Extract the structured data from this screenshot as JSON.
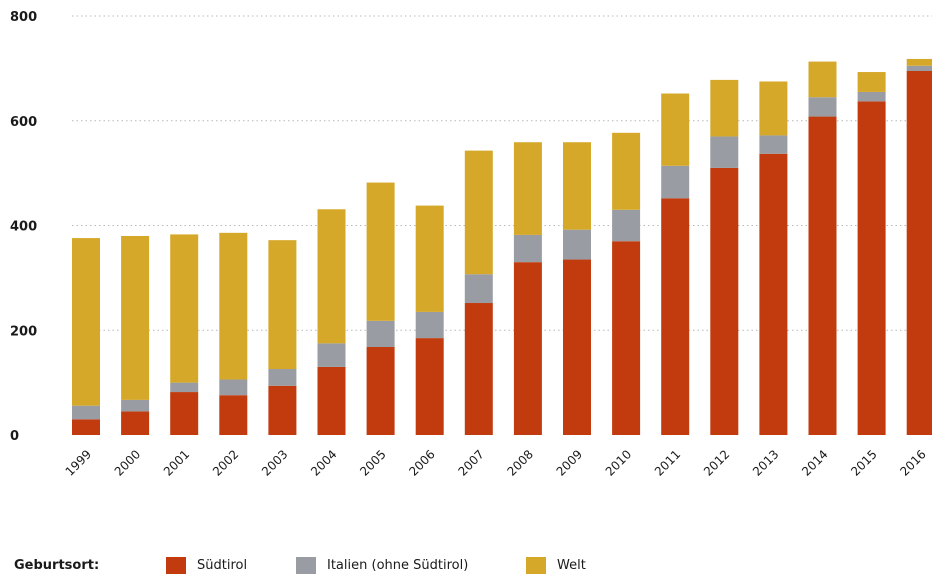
{
  "chart_data": {
    "type": "bar",
    "stacked": true,
    "categories": [
      "1999",
      "2000",
      "2001",
      "2002",
      "2003",
      "2004",
      "2005",
      "2006",
      "2007",
      "2008",
      "2009",
      "2010",
      "2011",
      "2012",
      "2013",
      "2014",
      "2015",
      "2016"
    ],
    "series": [
      {
        "name": "Südtirol",
        "color": "#c23b0e",
        "values": [
          30,
          45,
          82,
          76,
          94,
          130,
          168,
          185,
          252,
          330,
          335,
          370,
          452,
          510,
          537,
          608,
          637,
          695
        ]
      },
      {
        "name": "Italien (ohne Südtirol)",
        "color": "#999da3",
        "values": [
          26,
          22,
          18,
          30,
          32,
          45,
          50,
          50,
          55,
          52,
          57,
          60,
          62,
          60,
          35,
          37,
          18,
          10
        ]
      },
      {
        "name": "Welt",
        "color": "#d6a82a",
        "values": [
          320,
          313,
          283,
          280,
          246,
          256,
          264,
          203,
          236,
          177,
          167,
          147,
          138,
          108,
          103,
          68,
          38,
          13
        ]
      }
    ],
    "ylim": [
      0,
      800
    ],
    "yticks": [
      0,
      200,
      400,
      600,
      800
    ],
    "grid": true,
    "legend_title": "Geburtsort:",
    "legend_position": "bottom"
  }
}
